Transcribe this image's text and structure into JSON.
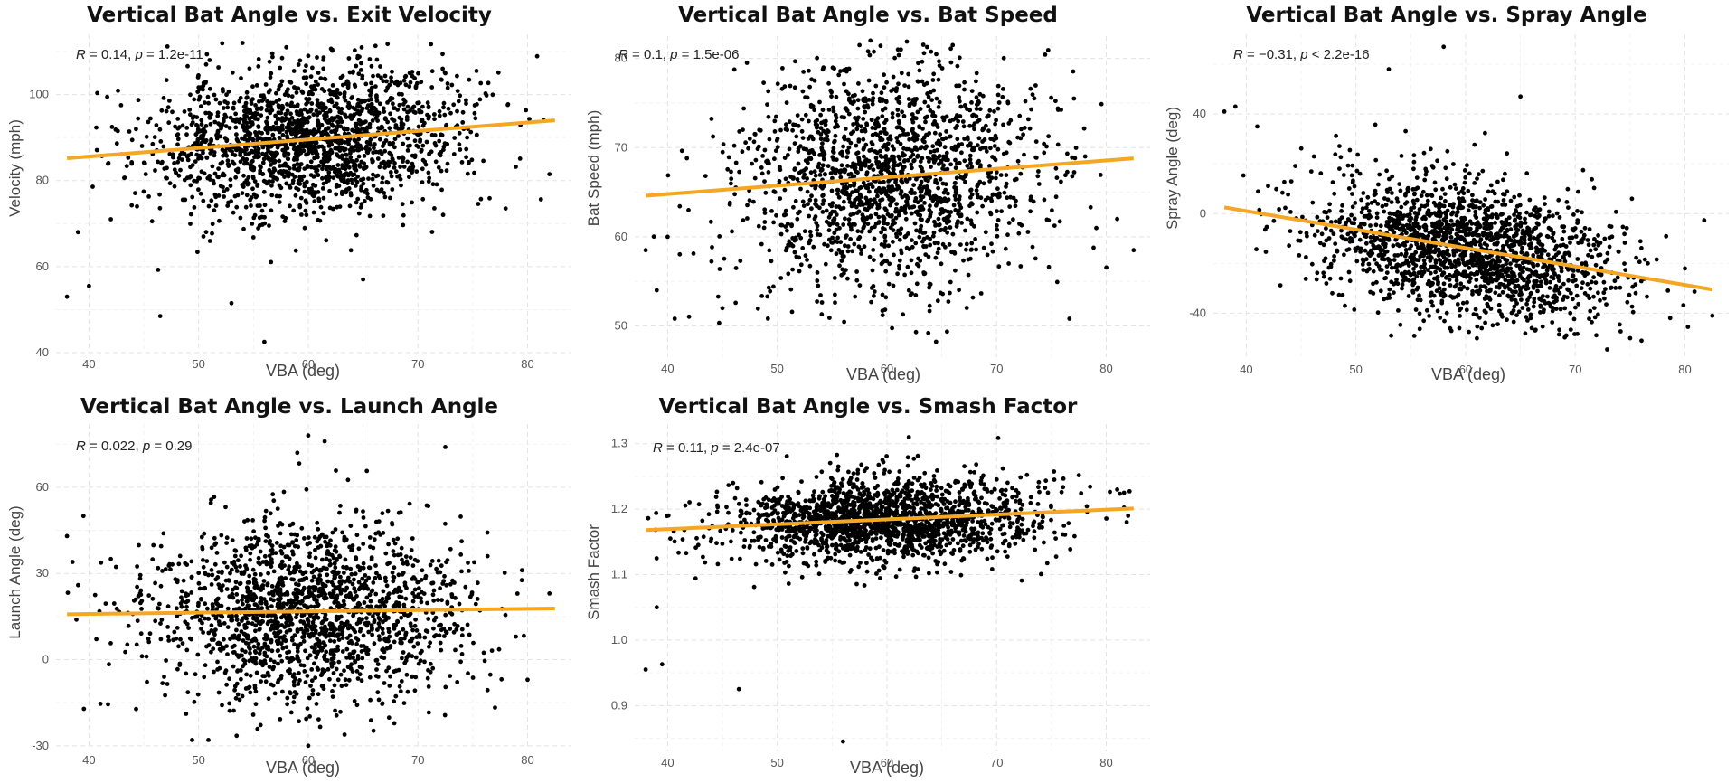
{
  "colors": {
    "points": "#000000",
    "fit_line": "#f5a623"
  },
  "chart_data": [
    {
      "type": "scatter",
      "title": "Vertical Bat Angle vs. Exit Velocity",
      "xlabel": "VBA (deg)",
      "ylabel": "Velocity (mph)",
      "stat": {
        "r_label": "R",
        "r_value": " = 0.14, ",
        "p_label": "p",
        "p_value": " = 1.2e-11"
      },
      "xlim": [
        37,
        84
      ],
      "ylim": [
        40,
        114
      ],
      "xticks": [
        40,
        50,
        60,
        70,
        80
      ],
      "yticks": [
        40,
        60,
        80,
        100
      ],
      "fit": {
        "x": [
          38,
          82.5
        ],
        "y": [
          85.2,
          94.0
        ]
      },
      "cloud": {
        "n": 1800,
        "x_mean": 60,
        "x_sd": 7.2,
        "y_sd": 8.5,
        "slope": 0.198,
        "intercept": 77.7,
        "seed": 11,
        "ymin": 42,
        "ymax": 112
      },
      "outliers": [
        [
          56,
          42.5
        ],
        [
          46.5,
          48.5
        ],
        [
          38,
          53
        ],
        [
          40,
          55.5
        ],
        [
          65,
          57
        ],
        [
          53,
          51.5
        ],
        [
          58,
          111
        ],
        [
          54,
          112
        ],
        [
          60,
          109
        ],
        [
          51,
          108
        ],
        [
          82,
          81.5
        ],
        [
          78,
          73.5
        ],
        [
          42,
          71
        ],
        [
          39,
          68
        ]
      ]
    },
    {
      "type": "scatter",
      "title": "Vertical Bat Angle vs. Bat Speed",
      "xlabel": "VBA (deg)",
      "ylabel": "Bat Speed (mph)",
      "stat": {
        "r_label": "R",
        "r_value": " = 0.1, ",
        "p_label": "p",
        "p_value": " = 1.5e-06"
      },
      "xlim": [
        37,
        84
      ],
      "ylim": [
        46.5,
        82.5
      ],
      "xticks": [
        40,
        50,
        60,
        70,
        80
      ],
      "yticks": [
        50,
        60,
        70,
        80
      ],
      "fit": {
        "x": [
          38,
          82.5
        ],
        "y": [
          64.6,
          68.8
        ]
      },
      "cloud": {
        "n": 1700,
        "x_mean": 60,
        "x_sd": 7.0,
        "y_sd": 6.2,
        "slope": 0.094,
        "intercept": 61.0,
        "seed": 23,
        "ymin": 47,
        "ymax": 82
      },
      "outliers": [
        [
          38,
          58.5
        ],
        [
          40,
          60
        ],
        [
          39,
          54
        ],
        [
          82.5,
          58.5
        ],
        [
          81,
          62
        ],
        [
          45,
          52
        ],
        [
          57.5,
          81.5
        ],
        [
          58.5,
          82
        ],
        [
          61,
          81
        ],
        [
          66,
          81.5
        ]
      ]
    },
    {
      "type": "scatter",
      "title": "Vertical Bat Angle vs. Spray Angle",
      "xlabel": "VBA (deg)",
      "ylabel": "Spray Angle (deg)",
      "stat": {
        "r_label": "R",
        "r_value": " = −0.31, ",
        "p_label": "p",
        "p_value": " < 2.2e-16"
      },
      "xlim": [
        37,
        84
      ],
      "ylim": [
        -58,
        72
      ],
      "xticks": [
        40,
        50,
        60,
        70,
        80
      ],
      "yticks": [
        -40,
        0,
        40
      ],
      "fit": {
        "x": [
          38,
          82.5
        ],
        "y": [
          2.5,
          -30.5
        ]
      },
      "cloud": {
        "n": 1800,
        "x_mean": 60,
        "x_sd": 7.0,
        "y_sd": 14,
        "slope": -0.742,
        "intercept": 30.7,
        "seed": 37,
        "ymin": -55,
        "ymax": 45
      },
      "outliers": [
        [
          58,
          67
        ],
        [
          53,
          58
        ],
        [
          38,
          41
        ],
        [
          39,
          43
        ],
        [
          41,
          35
        ],
        [
          65,
          47
        ],
        [
          82.5,
          -41
        ],
        [
          80,
          -22
        ],
        [
          75,
          -50
        ]
      ]
    },
    {
      "type": "scatter",
      "title": "Vertical Bat Angle vs. Launch Angle",
      "xlabel": "VBA (deg)",
      "ylabel": "Launch Angle (deg)",
      "stat": {
        "r_label": "R",
        "r_value": " = 0.022, ",
        "p_label": "p",
        "p_value": " = 0.29"
      },
      "xlim": [
        37,
        84
      ],
      "ylim": [
        -31,
        82
      ],
      "xticks": [
        40,
        50,
        60,
        70,
        80
      ],
      "yticks": [
        -30,
        0,
        30,
        60
      ],
      "fit": {
        "x": [
          38,
          82.5
        ],
        "y": [
          15.8,
          17.8
        ]
      },
      "cloud": {
        "n": 1800,
        "x_mean": 60,
        "x_sd": 7.2,
        "y_sd": 15,
        "slope": 0.045,
        "intercept": 14.1,
        "seed": 53,
        "ymin": -30,
        "ymax": 80
      },
      "outliers": [
        [
          60,
          78
        ],
        [
          61.5,
          76
        ],
        [
          72.5,
          74
        ],
        [
          59,
          72
        ],
        [
          39.5,
          50
        ],
        [
          38,
          43
        ],
        [
          38.5,
          34
        ],
        [
          60,
          -30
        ],
        [
          80,
          -7
        ],
        [
          82,
          23
        ],
        [
          42,
          35
        ]
      ]
    },
    {
      "type": "scatter",
      "title": "Vertical Bat Angle vs. Smash Factor",
      "xlabel": "VBA (deg)",
      "ylabel": "Smash Factor",
      "stat": {
        "r_label": "R",
        "r_value": " = 0.11, ",
        "p_label": "p",
        "p_value": " = 2.4e-07"
      },
      "xlim": [
        37,
        84
      ],
      "ylim": [
        0.83,
        1.33
      ],
      "xticks": [
        40,
        50,
        60,
        70,
        80
      ],
      "yticks": [
        0.9,
        1.0,
        1.1,
        1.2,
        1.3
      ],
      "fit": {
        "x": [
          38,
          82.5
        ],
        "y": [
          1.168,
          1.201
        ]
      },
      "cloud": {
        "n": 1800,
        "x_mean": 60,
        "x_sd": 7.0,
        "y_sd": 0.032,
        "slope": 0.00074,
        "intercept": 1.1398,
        "seed": 71,
        "ymin": 0.94,
        "ymax": 1.31
      },
      "outliers": [
        [
          56,
          0.845
        ],
        [
          46.5,
          0.925
        ],
        [
          38,
          0.955
        ],
        [
          39.5,
          0.963
        ],
        [
          39,
          1.05
        ],
        [
          62,
          1.31
        ],
        [
          82,
          1.19
        ],
        [
          81,
          1.23
        ]
      ]
    }
  ]
}
